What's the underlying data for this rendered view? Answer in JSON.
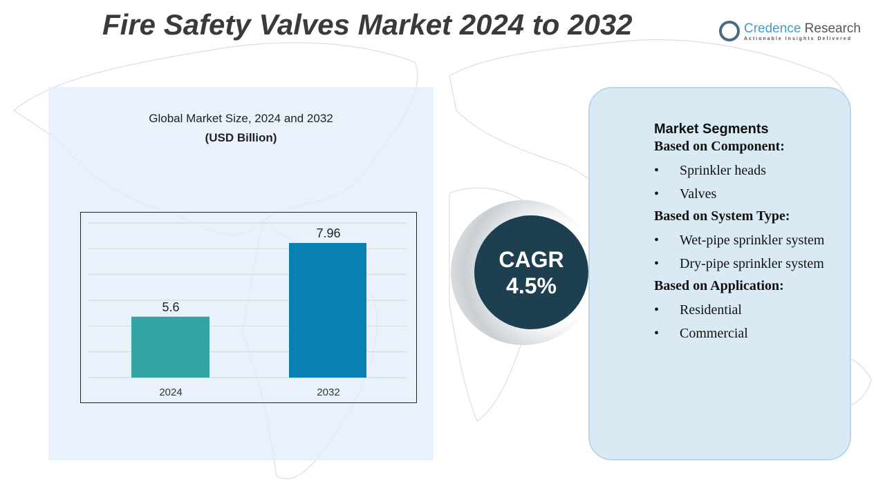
{
  "title": "Fire Safety Valves Market 2024 to 2032",
  "logo": {
    "name_a": "Credence",
    "name_b": "Research",
    "tagline": "Actionable Insights Delivered"
  },
  "chart_header": {
    "title": "Global Market Size, 2024 and 2032",
    "unit": "(USD Billion)"
  },
  "chart_data": {
    "type": "bar",
    "categories": [
      "2024",
      "2032"
    ],
    "values": [
      5.6,
      7.96
    ],
    "data_labels": [
      "5.6",
      "7.96"
    ],
    "colors": [
      "#33a3a3",
      "#0a80b0"
    ],
    "grid": true,
    "ylim": [
      3.65,
      8.6
    ],
    "title": "Global Market Size, 2024 and 2032",
    "ylabel": "(USD Billion)"
  },
  "cagr": {
    "label": "CAGR",
    "value": "4.5%"
  },
  "segments": {
    "heading": "Market Segments",
    "groups": [
      {
        "title": "Based on Component:",
        "items": [
          "Sprinkler heads",
          "Valves"
        ]
      },
      {
        "title": "Based on System Type:",
        "items": [
          "Wet-pipe sprinkler system",
          "Dry-pipe sprinkler system"
        ]
      },
      {
        "title": "Based on Application:",
        "items": [
          "Residential",
          "Commercial"
        ]
      }
    ]
  }
}
